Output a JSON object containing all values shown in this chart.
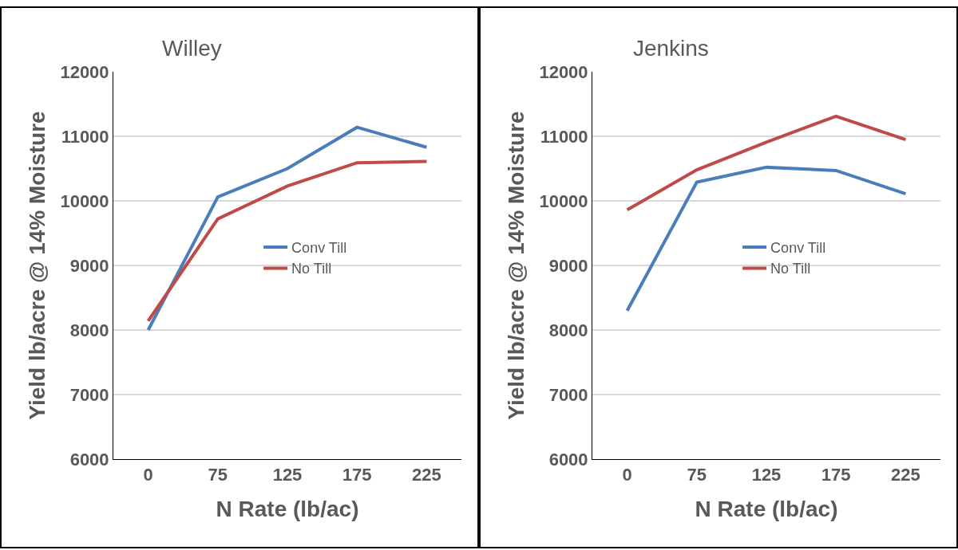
{
  "chart_data": [
    {
      "type": "line",
      "title": "Willey",
      "xlabel": "N Rate (lb/ac)",
      "ylabel": "Yield lb/acre @ 14% Moisture",
      "categories": [
        "0",
        "75",
        "125",
        "175",
        "225"
      ],
      "series": [
        {
          "name": "Conv Till",
          "color": "#4a7ebb",
          "values": [
            8000,
            10060,
            10500,
            11140,
            10830
          ]
        },
        {
          "name": "No Till",
          "color": "#be4b48",
          "values": [
            8140,
            9720,
            10230,
            10590,
            10610
          ]
        }
      ],
      "ylim": [
        6000,
        12000
      ],
      "yticks": [
        6000,
        7000,
        8000,
        9000,
        10000,
        11000,
        12000
      ],
      "grid": "y",
      "legend": "center"
    },
    {
      "type": "line",
      "title": "Jenkins",
      "xlabel": "N Rate (lb/ac)",
      "ylabel": "Yield lb/acre @ 14% Moisture",
      "categories": [
        "0",
        "75",
        "125",
        "175",
        "225"
      ],
      "series": [
        {
          "name": "Conv Till",
          "color": "#4a7ebb",
          "values": [
            8300,
            10290,
            10520,
            10470,
            10110
          ]
        },
        {
          "name": "No Till",
          "color": "#be4b48",
          "values": [
            9860,
            10480,
            10910,
            11310,
            10950
          ]
        }
      ],
      "ylim": [
        6000,
        12000
      ],
      "yticks": [
        6000,
        7000,
        8000,
        9000,
        10000,
        11000,
        12000
      ],
      "grid": "y",
      "legend": "center"
    }
  ]
}
